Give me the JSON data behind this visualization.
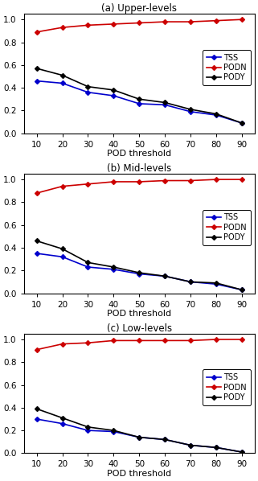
{
  "x": [
    10,
    20,
    30,
    40,
    50,
    60,
    70,
    80,
    90
  ],
  "panels": [
    {
      "title": "(a) Upper-levels",
      "TSS": [
        0.46,
        0.44,
        0.36,
        0.33,
        0.26,
        0.25,
        0.19,
        0.16,
        0.09
      ],
      "PODN": [
        0.89,
        0.93,
        0.95,
        0.96,
        0.97,
        0.98,
        0.98,
        0.99,
        1.0
      ],
      "PODY": [
        0.57,
        0.51,
        0.41,
        0.38,
        0.3,
        0.27,
        0.21,
        0.17,
        0.09
      ]
    },
    {
      "title": "(b) Mid-levels",
      "TSS": [
        0.35,
        0.32,
        0.23,
        0.21,
        0.17,
        0.15,
        0.1,
        0.08,
        0.03
      ],
      "PODN": [
        0.88,
        0.94,
        0.96,
        0.98,
        0.98,
        0.99,
        0.99,
        1.0,
        1.0
      ],
      "PODY": [
        0.46,
        0.39,
        0.27,
        0.23,
        0.18,
        0.15,
        0.1,
        0.09,
        0.03
      ]
    },
    {
      "title": "(c) Low-levels",
      "TSS": [
        0.3,
        0.26,
        0.2,
        0.19,
        0.14,
        0.12,
        0.07,
        0.05,
        0.01
      ],
      "PODN": [
        0.91,
        0.96,
        0.97,
        0.99,
        0.99,
        0.99,
        0.99,
        1.0,
        1.0
      ],
      "PODY": [
        0.39,
        0.31,
        0.23,
        0.2,
        0.14,
        0.12,
        0.07,
        0.05,
        0.01
      ]
    }
  ],
  "tss_color": "#0000cc",
  "podn_color": "#cc0000",
  "pody_color": "#000000",
  "marker": "D",
  "marker_size": 3.0,
  "line_width": 1.2,
  "xlabel": "POD threshold",
  "ylim": [
    0.0,
    1.05
  ],
  "yticks": [
    0.0,
    0.2,
    0.4,
    0.6,
    0.8,
    1.0
  ],
  "xticks": [
    10,
    20,
    30,
    40,
    50,
    60,
    70,
    80,
    90
  ],
  "legend_labels": [
    "TSS",
    "PODN",
    "PODY"
  ],
  "bg_color": "#ffffff",
  "title_fontsize": 8.5,
  "axis_fontsize": 8,
  "tick_fontsize": 7.5,
  "legend_fontsize": 7
}
